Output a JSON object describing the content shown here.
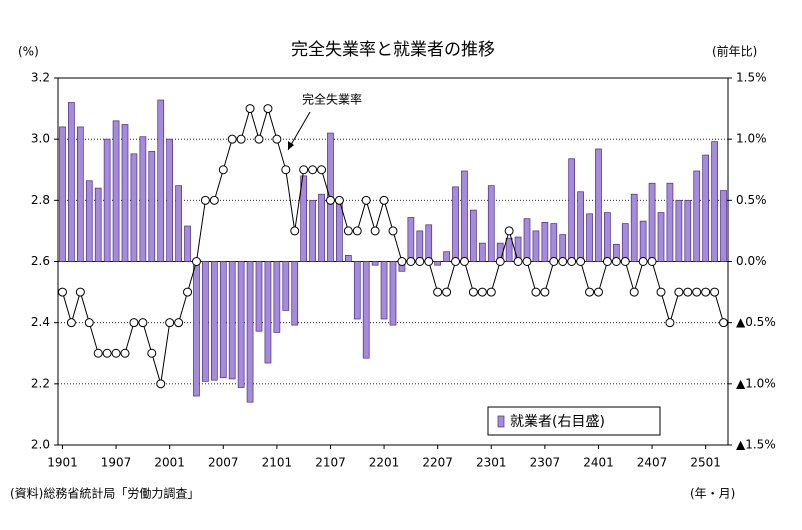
{
  "chart_data": {
    "type": "bar",
    "title": "完全失業率と就業者の推移",
    "ylabel": "(%)",
    "y2label": "(前年比)",
    "xlabel": "(年・月)",
    "source": "(資料)総務省統計局「労働力調査」",
    "categories": [
      "1901",
      null,
      null,
      null,
      null,
      null,
      "1907",
      null,
      null,
      null,
      null,
      null,
      "2001",
      null,
      null,
      null,
      null,
      null,
      "2007",
      null,
      null,
      null,
      null,
      null,
      "2101",
      null,
      null,
      null,
      null,
      null,
      "2107",
      null,
      null,
      null,
      null,
      null,
      "2201",
      null,
      null,
      null,
      null,
      null,
      "2207",
      null,
      null,
      null,
      null,
      null,
      "2301",
      null,
      null,
      null,
      null,
      null,
      "2307",
      null,
      null,
      null,
      null,
      null,
      "2401",
      null,
      null,
      null,
      null,
      null,
      "2407",
      null,
      null,
      null,
      null,
      null,
      "2501",
      null,
      null
    ],
    "series": [
      {
        "name": "就業者(右目盛)",
        "type": "bar",
        "axis": "y2",
        "color": "#a58bdb",
        "values": [
          1.1,
          1.3,
          1.1,
          0.66,
          0.6,
          1.0,
          1.15,
          1.12,
          0.88,
          1.02,
          0.9,
          1.32,
          1.0,
          0.62,
          0.29,
          -1.1,
          -0.98,
          -0.97,
          -0.95,
          -0.96,
          -1.03,
          -1.15,
          -0.57,
          -0.83,
          -0.58,
          -0.4,
          -0.52,
          0.7,
          0.5,
          0.55,
          1.05,
          0.5,
          0.05,
          -0.47,
          -0.79,
          -0.03,
          -0.47,
          -0.52,
          -0.08,
          0.36,
          0.25,
          0.3,
          -0.03,
          0.08,
          0.61,
          0.74,
          0.42,
          0.15,
          0.62,
          0.15,
          0.19,
          0.2,
          0.35,
          0.25,
          0.32,
          0.31,
          0.22,
          0.84,
          0.57,
          0.39,
          0.92,
          0.4,
          0.14,
          0.31,
          0.55,
          0.33,
          0.64,
          0.4,
          0.64,
          0.5,
          0.5,
          0.74,
          0.87,
          0.98,
          0.58
        ]
      },
      {
        "name": "完全失業率",
        "type": "line",
        "color": "#000000",
        "values": [
          2.5,
          2.4,
          2.5,
          2.4,
          2.3,
          2.3,
          2.3,
          2.3,
          2.4,
          2.4,
          2.3,
          2.2,
          2.4,
          2.4,
          2.5,
          2.6,
          2.8,
          2.8,
          2.9,
          3.0,
          3.0,
          3.1,
          3.0,
          3.1,
          3.0,
          2.9,
          2.7,
          2.9,
          2.9,
          2.9,
          2.8,
          2.8,
          2.7,
          2.7,
          2.8,
          2.7,
          2.8,
          2.7,
          2.6,
          2.6,
          2.6,
          2.6,
          2.5,
          2.5,
          2.6,
          2.6,
          2.5,
          2.5,
          2.5,
          2.6,
          2.7,
          2.6,
          2.6,
          2.5,
          2.5,
          2.6,
          2.6,
          2.6,
          2.6,
          2.5,
          2.5,
          2.6,
          2.6,
          2.6,
          2.5,
          2.6,
          2.6,
          2.5,
          2.4,
          2.5,
          2.5,
          2.5,
          2.5,
          2.5,
          2.4
        ]
      }
    ],
    "ylim": [
      2.0,
      3.2
    ],
    "yticks": [
      {
        "value": 2.0,
        "label": "2.0"
      },
      2.2,
      2.4,
      2.6,
      2.8,
      {
        "value": 3.0,
        "label": "3.0"
      },
      3.2
    ],
    "y2lim": [
      -1.5,
      1.5
    ],
    "y2ticks": [
      {
        "value": -1.5,
        "label": "▲1.5%"
      },
      {
        "value": -1.0,
        "label": "▲1.0%"
      },
      {
        "value": -0.5,
        "label": "▲0.5%"
      },
      {
        "value": 0.0,
        "label": "0.0%"
      },
      {
        "value": 0.5,
        "label": "0.5%"
      },
      {
        "value": 1.0,
        "label": "1.0%"
      },
      {
        "value": 1.5,
        "label": "1.5%"
      }
    ],
    "grid": true,
    "legend": "lower right"
  }
}
